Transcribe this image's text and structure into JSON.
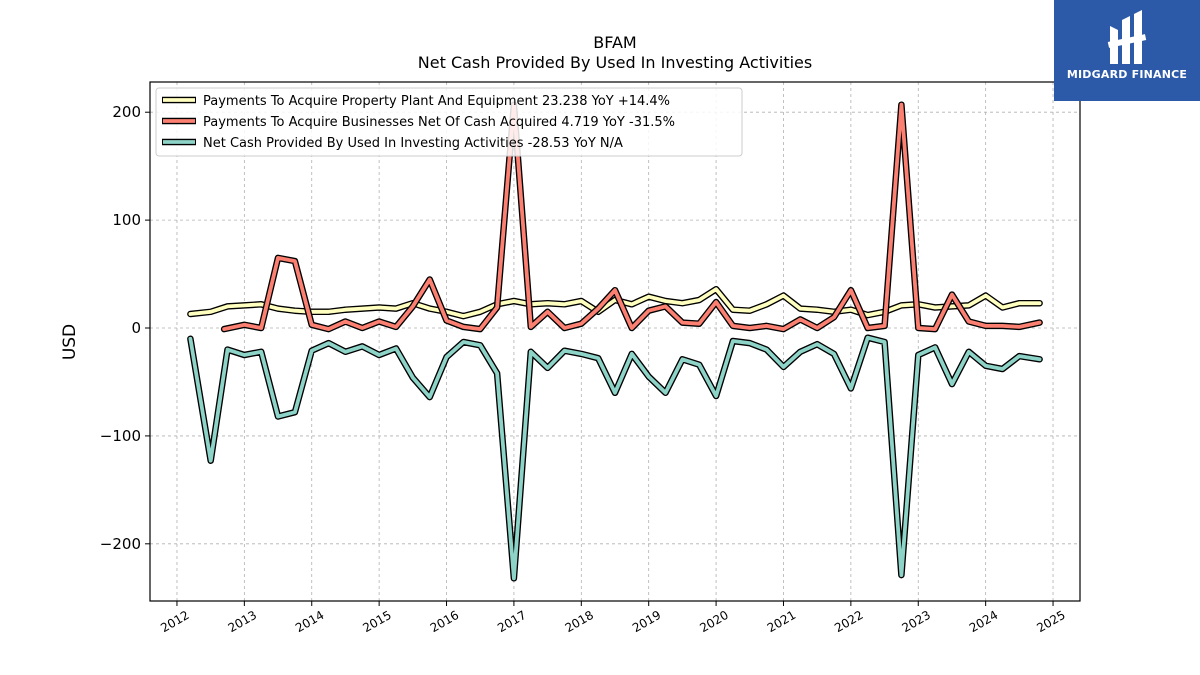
{
  "chart_data": {
    "type": "line",
    "title": "BFAM",
    "subtitle": "Net Cash Provided By Used In Investing Activities",
    "ylabel": "USD",
    "xlabel": "",
    "xlim": [
      2011.6,
      2025.4
    ],
    "ylim": [
      -253,
      228
    ],
    "grid": true,
    "legend_position": "top-left",
    "x_ticks": [
      2012,
      2013,
      2014,
      2015,
      2016,
      2017,
      2018,
      2019,
      2020,
      2021,
      2022,
      2023,
      2024,
      2025
    ],
    "y_ticks": [
      -200,
      -100,
      0,
      100,
      200
    ],
    "x_tick_labels": [
      "2012",
      "2013",
      "2014",
      "2015",
      "2016",
      "2017",
      "2018",
      "2019",
      "2020",
      "2021",
      "2022",
      "2023",
      "2024",
      "2025"
    ],
    "y_tick_labels": [
      "−200",
      "−100",
      "0",
      "100",
      "200"
    ],
    "series": [
      {
        "name": "Payments To Acquire Property Plant And Equipment",
        "legend_label": "Payments To Acquire Property Plant And Equipment  23.238 YoY +14.4%",
        "color": "#ffffbf",
        "x": [
          2012.2,
          2012.5,
          2012.75,
          2013.0,
          2013.25,
          2013.5,
          2013.75,
          2014.0,
          2014.25,
          2014.5,
          2014.75,
          2015.0,
          2015.25,
          2015.5,
          2015.75,
          2016.0,
          2016.25,
          2016.5,
          2016.75,
          2017.0,
          2017.25,
          2017.5,
          2017.75,
          2018.0,
          2018.25,
          2018.5,
          2018.75,
          2019.0,
          2019.25,
          2019.5,
          2019.75,
          2020.0,
          2020.25,
          2020.5,
          2020.75,
          2021.0,
          2021.25,
          2021.5,
          2021.75,
          2022.0,
          2022.25,
          2022.5,
          2022.75,
          2023.0,
          2023.25,
          2023.5,
          2023.75,
          2024.0,
          2024.25,
          2024.5,
          2024.8
        ],
        "values": [
          13,
          15,
          20,
          21,
          22,
          18,
          16,
          15,
          15,
          17,
          18,
          19,
          18,
          23,
          18,
          15,
          11,
          15,
          22,
          25,
          22,
          23,
          22,
          25,
          15,
          26,
          22,
          29,
          25,
          23,
          26,
          36,
          17,
          16,
          22,
          30,
          18,
          17,
          15,
          17,
          12,
          15,
          21,
          22,
          19,
          20,
          21,
          30,
          19,
          23,
          23
        ]
      },
      {
        "name": "Payments To Acquire Businesses Net Of Cash Acquired",
        "legend_label": "Payments To Acquire Businesses Net Of Cash Acquired  4.719 YoY -31.5%",
        "color": "#fb8072",
        "x": [
          2012.7,
          2013.0,
          2013.25,
          2013.5,
          2013.75,
          2014.0,
          2014.25,
          2014.5,
          2014.75,
          2015.0,
          2015.25,
          2015.5,
          2015.75,
          2016.0,
          2016.25,
          2016.5,
          2016.75,
          2017.0,
          2017.25,
          2017.5,
          2017.75,
          2018.0,
          2018.25,
          2018.5,
          2018.75,
          2019.0,
          2019.25,
          2019.5,
          2019.75,
          2020.0,
          2020.25,
          2020.5,
          2020.75,
          2021.0,
          2021.25,
          2021.5,
          2021.75,
          2022.0,
          2022.25,
          2022.5,
          2022.75,
          2023.0,
          2023.25,
          2023.5,
          2023.75,
          2024.0,
          2024.25,
          2024.5,
          2024.8
        ],
        "values": [
          -1,
          3,
          0,
          65,
          62,
          3,
          -1,
          6,
          0,
          6,
          1,
          20,
          45,
          7,
          1,
          -1,
          19,
          207,
          1,
          15,
          0,
          4,
          18,
          35,
          0,
          16,
          20,
          5,
          4,
          24,
          2,
          0,
          2,
          -1,
          8,
          0,
          10,
          35,
          0,
          2,
          207,
          0,
          -1,
          31,
          6,
          2,
          2,
          1,
          5
        ]
      },
      {
        "name": "Net Cash Provided By Used In Investing Activities",
        "legend_label": "Net Cash Provided By Used In Investing Activities  -28.53 YoY N/A",
        "color": "#8dd3c7",
        "x": [
          2012.2,
          2012.5,
          2012.75,
          2013.0,
          2013.25,
          2013.5,
          2013.75,
          2014.0,
          2014.25,
          2014.5,
          2014.75,
          2015.0,
          2015.25,
          2015.5,
          2015.75,
          2016.0,
          2016.25,
          2016.5,
          2016.75,
          2017.0,
          2017.25,
          2017.5,
          2017.75,
          2018.0,
          2018.25,
          2018.5,
          2018.75,
          2019.0,
          2019.25,
          2019.5,
          2019.75,
          2020.0,
          2020.25,
          2020.5,
          2020.75,
          2021.0,
          2021.25,
          2021.5,
          2021.75,
          2022.0,
          2022.25,
          2022.5,
          2022.75,
          2023.0,
          2023.25,
          2023.5,
          2023.75,
          2024.0,
          2024.25,
          2024.5,
          2024.8
        ],
        "values": [
          -10,
          -123,
          -20,
          -25,
          -22,
          -82,
          -78,
          -21,
          -14,
          -22,
          -17,
          -25,
          -19,
          -46,
          -64,
          -27,
          -13,
          -16,
          -42,
          -232,
          -22,
          -37,
          -21,
          -24,
          -28,
          -60,
          -24,
          -45,
          -60,
          -29,
          -34,
          -63,
          -12,
          -14,
          -20,
          -36,
          -22,
          -15,
          -24,
          -56,
          -9,
          -13,
          -229,
          -25,
          -18,
          -52,
          -22,
          -35,
          -38,
          -26,
          -29
        ]
      }
    ]
  },
  "logo": {
    "text": "MIDGARD FINANCE"
  }
}
